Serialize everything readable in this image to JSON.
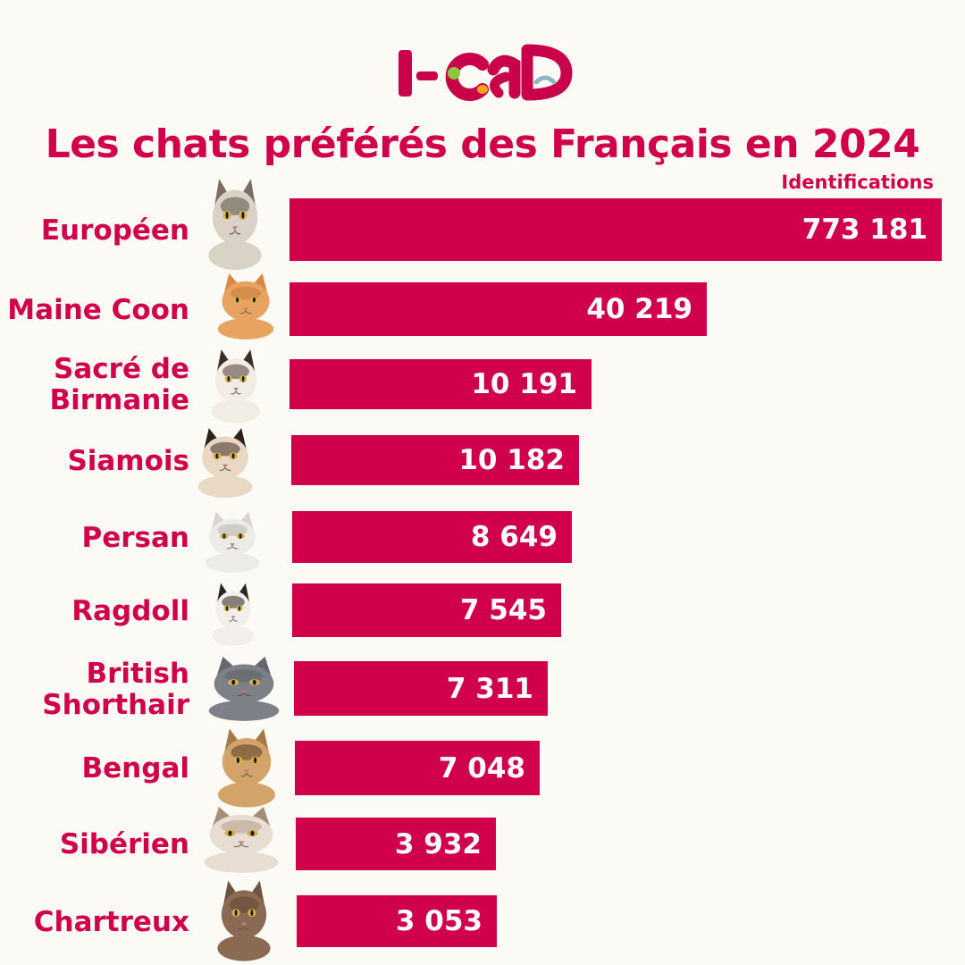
{
  "logo": {
    "text": "I-CAD",
    "icon": "pets-logo-icon",
    "colors": {
      "text": "#c8014a",
      "green": "#8dc63f",
      "orange": "#f6a21d",
      "blue": "#8ab6c8"
    }
  },
  "colors": {
    "accent": "#d0014a",
    "background": "#fcfaf5",
    "bar_text": "#ffffff"
  },
  "chart_data": {
    "type": "bar",
    "orientation": "horizontal",
    "title": "Les chats préférés des Français en 2024",
    "value_label": "Identifications",
    "categories": [
      "Européen",
      "Maine Coon",
      "Sacré de Birmanie",
      "Siamois",
      "Persan",
      "Ragdoll",
      "British Shorthair",
      "Bengal",
      "Sibérien",
      "Chartreux"
    ],
    "category_lines": [
      [
        "Européen"
      ],
      [
        "Maine Coon"
      ],
      [
        "Sacré de",
        "Birmanie"
      ],
      [
        "Siamois"
      ],
      [
        "Persan"
      ],
      [
        "Ragdoll"
      ],
      [
        "British",
        "Shorthair"
      ],
      [
        "Bengal"
      ],
      [
        "Sibérien"
      ],
      [
        "Chartreux"
      ]
    ],
    "values": [
      773181,
      40219,
      10191,
      10182,
      8649,
      7545,
      7311,
      7048,
      3932,
      3053
    ],
    "data_labels": [
      "773 181",
      "40 219",
      "10 191",
      "10 182",
      "8 649",
      "7 545",
      "7 311",
      "7 048",
      "3 932",
      "3 053"
    ],
    "grid": false,
    "axis_visible": false,
    "legend": "none",
    "category_icons": [
      "cat-photo-icon",
      "cat-photo-icon",
      "cat-photo-icon",
      "cat-photo-icon",
      "cat-photo-icon",
      "cat-photo-icon",
      "cat-photo-icon",
      "cat-photo-icon",
      "cat-photo-icon",
      "cat-photo-icon"
    ]
  }
}
